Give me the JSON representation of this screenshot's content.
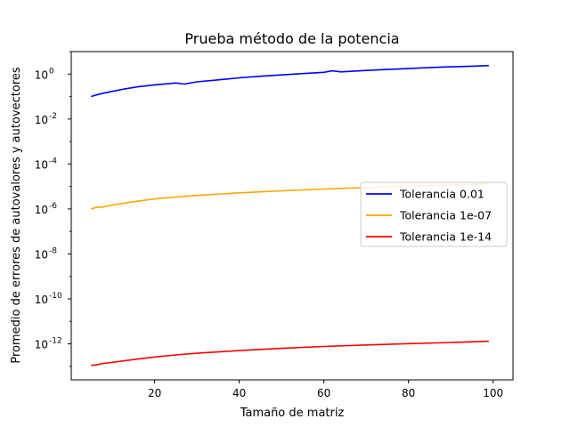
{
  "chart_data": {
    "type": "line",
    "title": "Prueba método de la potencia",
    "xlabel": "Tamaño de matriz",
    "ylabel": "Promedio de errores de autovalores y autovectores",
    "xlim": [
      0.3,
      104.7
    ],
    "ylim": [
      2.5e-14,
      10
    ],
    "yscale": "log",
    "grid": false,
    "legend_position": "center-right",
    "x_ticks": [
      20,
      40,
      60,
      80,
      100
    ],
    "y_ticks": [
      {
        "exp": 0,
        "value": 1
      },
      {
        "exp": -2,
        "value": 0.01
      },
      {
        "exp": -4,
        "value": 0.0001
      },
      {
        "exp": -6,
        "value": 1e-06
      },
      {
        "exp": -8,
        "value": 1e-08
      },
      {
        "exp": -10,
        "value": 1e-10
      },
      {
        "exp": -12,
        "value": 1e-12
      }
    ],
    "series": [
      {
        "name": "Tolerancia 0.01",
        "color": "#0000ff",
        "x": [
          5,
          7,
          10,
          13,
          16,
          20,
          25,
          27,
          30,
          35,
          40,
          45,
          50,
          55,
          60,
          62,
          64,
          70,
          75,
          80,
          85,
          90,
          95,
          99
        ],
        "y": [
          0.1,
          0.13,
          0.17,
          0.22,
          0.27,
          0.33,
          0.4,
          0.36,
          0.45,
          0.55,
          0.68,
          0.8,
          0.92,
          1.05,
          1.2,
          1.4,
          1.25,
          1.45,
          1.6,
          1.75,
          1.95,
          2.1,
          2.25,
          2.4
        ]
      },
      {
        "name": "Tolerancia 1e-07",
        "color": "#ffa500",
        "x": [
          5,
          6,
          8,
          10,
          15,
          20,
          25,
          30,
          40,
          50,
          60,
          70,
          80,
          90,
          99
        ],
        "y": [
          1e-06,
          1.15e-06,
          1.25e-06,
          1.5e-06,
          2.1e-06,
          2.8e-06,
          3.4e-06,
          4e-06,
          5.2e-06,
          6.4e-06,
          7.7e-06,
          9e-06,
          1.03e-05,
          1.18e-05,
          1.32e-05
        ]
      },
      {
        "name": "Tolerancia 1e-14",
        "color": "#ff0000",
        "x": [
          5,
          6,
          8,
          10,
          15,
          20,
          25,
          30,
          40,
          50,
          60,
          70,
          80,
          90,
          99
        ],
        "y": [
          1.1e-13,
          1.15e-13,
          1.35e-13,
          1.5e-13,
          2e-13,
          2.6e-13,
          3.2e-13,
          3.8e-13,
          5e-13,
          6.3e-13,
          7.6e-13,
          8.9e-13,
          1.02e-12,
          1.15e-12,
          1.3e-12
        ]
      }
    ]
  }
}
